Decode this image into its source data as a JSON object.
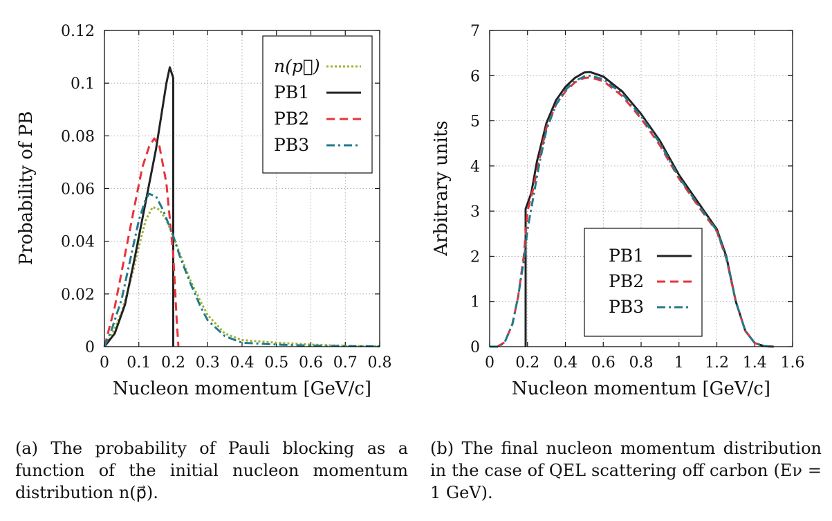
{
  "colors": {
    "n_p": "#9ab534",
    "pb1": "#222222",
    "pb2": "#e8333a",
    "pb3": "#237a8a",
    "grid": "#9a9a9a",
    "frame": "#111111"
  },
  "captions": {
    "a": "(a) The probability of Pauli blocking as a function of the initial nucleon momentum distribution n(p⃗).",
    "b": "(b) The final nucleon momentum distribution in the case of QEL scattering off carbon (Eν = 1 GeV)."
  },
  "chart_data": [
    {
      "type": "line",
      "panel": "a",
      "title": "",
      "xlabel": "Nucleon momentum [GeV/c]",
      "ylabel": "Probability of PB",
      "xlim": [
        0,
        0.8
      ],
      "ylim": [
        0,
        0.12
      ],
      "xticks": [
        0,
        0.1,
        0.2,
        0.3,
        0.4,
        0.5,
        0.6,
        0.7,
        0.8
      ],
      "xtick_labels": [
        "0",
        "0.1",
        "0.2",
        "0.3",
        "0.4",
        "0.5",
        "0.6",
        "0.7",
        "0.8"
      ],
      "yticks": [
        0,
        0.02,
        0.04,
        0.06,
        0.08,
        0.1,
        0.12
      ],
      "ytick_labels": [
        "0",
        "0.02",
        "0.04",
        "0.06",
        "0.08",
        "0.1",
        "0.12"
      ],
      "grid": true,
      "legend_position": "top-right",
      "series": [
        {
          "name": "n(p⃗)",
          "legend_italic": true,
          "color_key": "n_p",
          "dash": "dotted",
          "points": [
            [
              0,
              0
            ],
            [
              0.02,
              0.004
            ],
            [
              0.05,
              0.013
            ],
            [
              0.08,
              0.027
            ],
            [
              0.1,
              0.038
            ],
            [
              0.12,
              0.048
            ],
            [
              0.14,
              0.053
            ],
            [
              0.16,
              0.052
            ],
            [
              0.18,
              0.048
            ],
            [
              0.2,
              0.042
            ],
            [
              0.22,
              0.035
            ],
            [
              0.25,
              0.025
            ],
            [
              0.28,
              0.017
            ],
            [
              0.3,
              0.012
            ],
            [
              0.35,
              0.005
            ],
            [
              0.4,
              0.0025
            ],
            [
              0.5,
              0.0015
            ],
            [
              0.6,
              0.0008
            ],
            [
              0.7,
              0.0003
            ],
            [
              0.8,
              0.0001
            ]
          ]
        },
        {
          "name": "PB1",
          "legend_italic": false,
          "color_key": "pb1",
          "dash": "solid",
          "points": [
            [
              0,
              0
            ],
            [
              0.03,
              0.005
            ],
            [
              0.06,
              0.016
            ],
            [
              0.09,
              0.035
            ],
            [
              0.12,
              0.055
            ],
            [
              0.15,
              0.075
            ],
            [
              0.18,
              0.1
            ],
            [
              0.19,
              0.106
            ],
            [
              0.2,
              0.102
            ],
            [
              0.2,
              0
            ]
          ]
        },
        {
          "name": "PB2",
          "legend_italic": false,
          "color_key": "pb2",
          "dash": "dashed",
          "points": [
            [
              0,
              0
            ],
            [
              0.03,
              0.015
            ],
            [
              0.06,
              0.035
            ],
            [
              0.09,
              0.055
            ],
            [
              0.11,
              0.068
            ],
            [
              0.13,
              0.076
            ],
            [
              0.145,
              0.079
            ],
            [
              0.16,
              0.076
            ],
            [
              0.18,
              0.062
            ],
            [
              0.2,
              0.035
            ],
            [
              0.21,
              0.01
            ],
            [
              0.215,
              0
            ]
          ]
        },
        {
          "name": "PB3",
          "legend_italic": false,
          "color_key": "pb3",
          "dash": "dashdot",
          "points": [
            [
              0,
              0
            ],
            [
              0.02,
              0.006
            ],
            [
              0.05,
              0.018
            ],
            [
              0.08,
              0.036
            ],
            [
              0.1,
              0.048
            ],
            [
              0.12,
              0.056
            ],
            [
              0.13,
              0.058
            ],
            [
              0.15,
              0.057
            ],
            [
              0.17,
              0.052
            ],
            [
              0.2,
              0.042
            ],
            [
              0.22,
              0.034
            ],
            [
              0.25,
              0.024
            ],
            [
              0.28,
              0.015
            ],
            [
              0.3,
              0.01
            ],
            [
              0.35,
              0.004
            ],
            [
              0.4,
              0.0015
            ],
            [
              0.5,
              0.0008
            ],
            [
              0.6,
              0.0004
            ],
            [
              0.7,
              0.0002
            ],
            [
              0.8,
              0.0001
            ]
          ]
        }
      ]
    },
    {
      "type": "line",
      "panel": "b",
      "title": "",
      "xlabel": "Nucleon momentum [GeV/c]",
      "ylabel": "Arbitrary units",
      "xlim": [
        0,
        1.6
      ],
      "ylim": [
        0,
        7
      ],
      "xticks": [
        0,
        0.2,
        0.4,
        0.6,
        0.8,
        1,
        1.2,
        1.4,
        1.6
      ],
      "xtick_labels": [
        "0",
        "0.2",
        "0.4",
        "0.6",
        "0.8",
        "1",
        "1.2",
        "1.4",
        "1.6"
      ],
      "yticks": [
        0,
        1,
        2,
        3,
        4,
        5,
        6,
        7
      ],
      "ytick_labels": [
        "0",
        "1",
        "2",
        "3",
        "4",
        "5",
        "6",
        "7"
      ],
      "grid": true,
      "legend_position": "bottom-center",
      "series": [
        {
          "name": "PB1",
          "legend_italic": false,
          "color_key": "pb1",
          "dash": "solid",
          "points": [
            [
              0.19,
              0
            ],
            [
              0.19,
              3.05
            ],
            [
              0.22,
              3.4
            ],
            [
              0.25,
              4.1
            ],
            [
              0.3,
              4.95
            ],
            [
              0.35,
              5.45
            ],
            [
              0.4,
              5.75
            ],
            [
              0.45,
              5.95
            ],
            [
              0.5,
              6.07
            ],
            [
              0.53,
              6.08
            ],
            [
              0.6,
              5.98
            ],
            [
              0.7,
              5.65
            ],
            [
              0.8,
              5.15
            ],
            [
              0.9,
              4.55
            ],
            [
              1.0,
              3.8
            ],
            [
              1.1,
              3.2
            ],
            [
              1.2,
              2.6
            ],
            [
              1.25,
              2.0
            ],
            [
              1.3,
              1.0
            ],
            [
              1.35,
              0.35
            ],
            [
              1.4,
              0.08
            ],
            [
              1.45,
              0.01
            ],
            [
              1.5,
              0
            ]
          ]
        },
        {
          "name": "PB2",
          "legend_italic": false,
          "color_key": "pb2",
          "dash": "dashed",
          "points": [
            [
              0.04,
              0
            ],
            [
              0.08,
              0.1
            ],
            [
              0.12,
              0.5
            ],
            [
              0.15,
              1.1
            ],
            [
              0.18,
              2.0
            ],
            [
              0.2,
              3.0
            ],
            [
              0.23,
              3.5
            ],
            [
              0.26,
              4.1
            ],
            [
              0.3,
              4.85
            ],
            [
              0.35,
              5.35
            ],
            [
              0.4,
              5.65
            ],
            [
              0.45,
              5.85
            ],
            [
              0.5,
              5.95
            ],
            [
              0.53,
              5.96
            ],
            [
              0.6,
              5.88
            ],
            [
              0.7,
              5.55
            ],
            [
              0.8,
              5.05
            ],
            [
              0.9,
              4.45
            ],
            [
              1.0,
              3.72
            ],
            [
              1.1,
              3.12
            ],
            [
              1.2,
              2.55
            ],
            [
              1.25,
              1.95
            ],
            [
              1.3,
              1.0
            ],
            [
              1.35,
              0.35
            ],
            [
              1.4,
              0.08
            ],
            [
              1.45,
              0.01
            ],
            [
              1.5,
              0
            ]
          ]
        },
        {
          "name": "PB3",
          "legend_italic": false,
          "color_key": "pb3",
          "dash": "dashdot",
          "points": [
            [
              0,
              0
            ],
            [
              0.05,
              0
            ],
            [
              0.08,
              0.1
            ],
            [
              0.12,
              0.5
            ],
            [
              0.15,
              1.1
            ],
            [
              0.18,
              1.9
            ],
            [
              0.2,
              2.6
            ],
            [
              0.23,
              3.3
            ],
            [
              0.26,
              4.0
            ],
            [
              0.3,
              4.8
            ],
            [
              0.35,
              5.35
            ],
            [
              0.4,
              5.68
            ],
            [
              0.45,
              5.88
            ],
            [
              0.5,
              5.98
            ],
            [
              0.53,
              6.0
            ],
            [
              0.6,
              5.92
            ],
            [
              0.7,
              5.6
            ],
            [
              0.8,
              5.1
            ],
            [
              0.9,
              4.5
            ],
            [
              1.0,
              3.75
            ],
            [
              1.1,
              3.15
            ],
            [
              1.2,
              2.57
            ],
            [
              1.25,
              1.97
            ],
            [
              1.3,
              1.0
            ],
            [
              1.35,
              0.35
            ],
            [
              1.4,
              0.08
            ],
            [
              1.45,
              0.01
            ],
            [
              1.5,
              0
            ]
          ]
        }
      ]
    }
  ]
}
